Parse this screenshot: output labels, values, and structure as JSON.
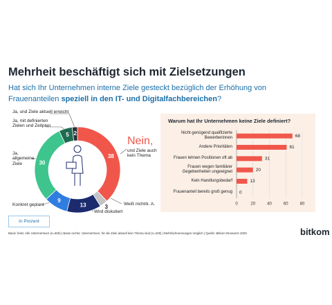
{
  "header": {
    "title": "Mehrheit beschäftigt sich mit Zielsetzungen",
    "subtitle_line1": "Hat sich Ihr Unternehmen interne Ziele gesteckt bezüglich der Erhöhung von",
    "subtitle_line2": "Frauenanteilen ",
    "subtitle_bold": "speziell in den IT- und Digitalfachbereichen",
    "subtitle_end": "?"
  },
  "chart_data": [
    {
      "type": "pie",
      "categories": [
        "Nein,",
        "Weiß nicht/k. A.",
        "Wird diskutiert",
        "Konkret geplant",
        "Ja, allgemeine Ziele",
        "Ja, mit definierten Zielen und Zeitplan",
        "Ja, und Ziele aktuell erreicht"
      ],
      "values": [
        38,
        3,
        13,
        9,
        30,
        5,
        2
      ],
      "colors": [
        "#f0574a",
        "#c4c4c4",
        "#1c2a6e",
        "#2f7de1",
        "#3ec48d",
        "#1f6b50",
        "#263238"
      ],
      "annotation": "und Ziele auch kein Thema"
    },
    {
      "type": "bar",
      "title": "Warum hat Ihr Unternehmen keine Ziele definiert?",
      "categories": [
        "Nicht genügend qualifizierte Bewerberinnen",
        "Andere Prioritäten",
        "Frauen lehnen Positionen oft ab",
        "Frauen wegen familiärer Gegebenheiten ungeeignet",
        "Kein Handlungsbedarf",
        "Frauenanteil bereits groß genug"
      ],
      "values": [
        68,
        61,
        31,
        20,
        13,
        0
      ],
      "color": "#f0574a",
      "xlim": [
        0,
        80
      ],
      "xticks": [
        0,
        20,
        40,
        60,
        80
      ],
      "grid": true
    }
  ],
  "footer": {
    "unit_button": "In Prozent",
    "note": "Basis: links: Alle Unternehmen (n=605) | Basis rechts: Unternehmen, für die Ziele aktuell kein Thema sind (n=229) | Mehrfachnennungen möglich | Quelle: Bitkom Research 2025",
    "logo": "bitkom"
  }
}
